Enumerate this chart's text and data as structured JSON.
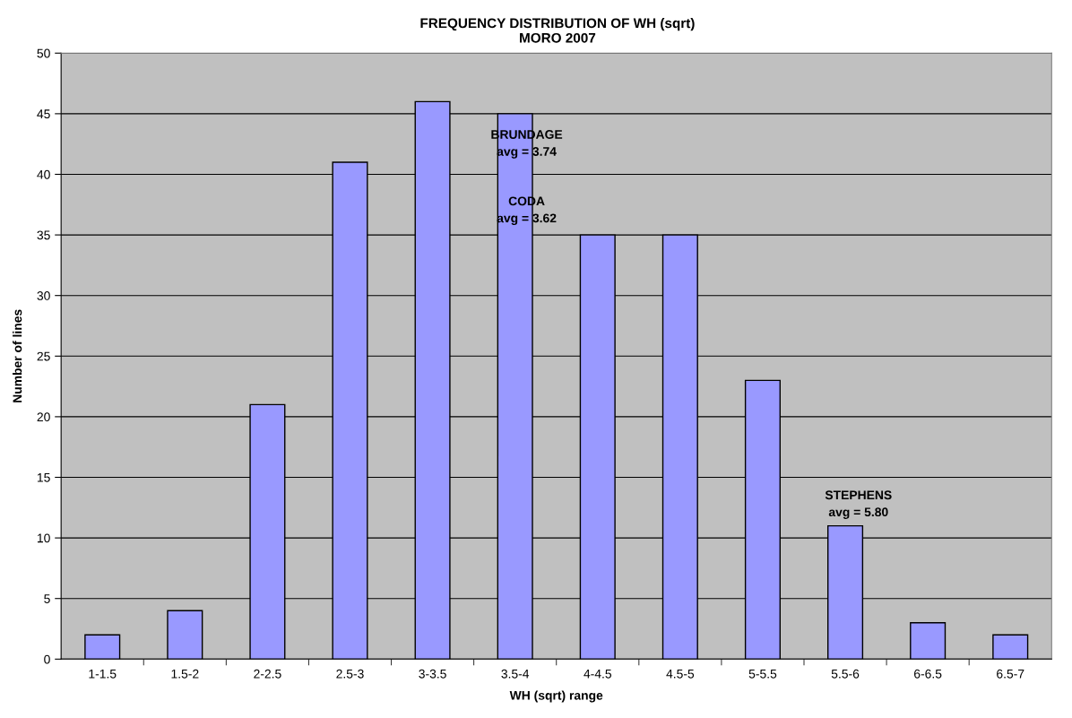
{
  "chart_data": {
    "type": "bar",
    "title": "FREQUENCY DISTRIBUTION OF WH (sqrt)\nMORO 2007",
    "xlabel": "WH (sqrt) range",
    "ylabel": "Number of lines",
    "categories": [
      "1-1.5",
      "1.5-2",
      "2-2.5",
      "2.5-3",
      "3-3.5",
      "3.5-4",
      "4-4.5",
      "4.5-5",
      "5-5.5",
      "5.5-6",
      "6-6.5",
      "6.5-7"
    ],
    "values": [
      2,
      4,
      21,
      41,
      46,
      45,
      35,
      35,
      23,
      11,
      3,
      2
    ],
    "color": "#9999ff",
    "ylim": [
      0,
      50
    ],
    "yticks": [
      0,
      5,
      10,
      15,
      20,
      25,
      30,
      35,
      40,
      45,
      50
    ],
    "grid": "y",
    "annotations": [
      "BRUNDAGE\navg = 3.74",
      "CODA\navg = 3.62",
      "STEPHENS\navg = 5.80"
    ]
  }
}
